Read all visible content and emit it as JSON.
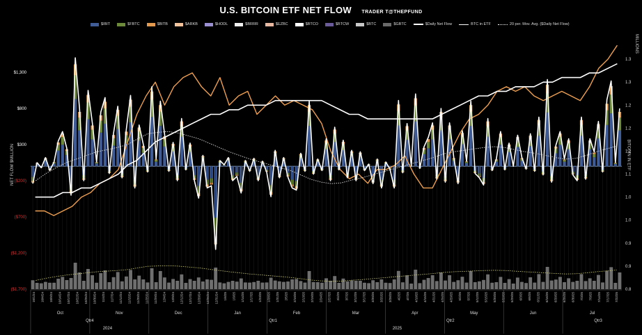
{
  "header": {
    "title": "U.S. BITCOIN ETF NET FLOW",
    "subtitle": "TRADER T@THEPFUND"
  },
  "legend": [
    {
      "label": "$IBIT",
      "kind": "bar",
      "color": "#3f5c96"
    },
    {
      "label": "$FBTC",
      "kind": "bar",
      "color": "#6c8a3a"
    },
    {
      "label": "$BITB",
      "kind": "bar",
      "color": "#e39a4e"
    },
    {
      "label": "$ARKB",
      "kind": "bar",
      "color": "#f2c29a"
    },
    {
      "label": "$HODL",
      "kind": "bar",
      "color": "#9a8fd0"
    },
    {
      "label": "$BRRR",
      "kind": "bar",
      "color": "#f0f0f0"
    },
    {
      "label": "$EZBC",
      "kind": "bar",
      "color": "#e8b8a0"
    },
    {
      "label": "$BTCO",
      "kind": "bar",
      "color": "#ffffff"
    },
    {
      "label": "$BTCW",
      "kind": "bar",
      "color": "#6a5a9a"
    },
    {
      "label": "$BTC",
      "kind": "bar",
      "color": "#c8c8c8"
    },
    {
      "label": "$GBTC",
      "kind": "bar",
      "color": "#6a6a6a"
    },
    {
      "label": "$Daily Net Flow",
      "kind": "line"
    },
    {
      "label": "BTC in ETF",
      "kind": "thinline"
    },
    {
      "label": "20 per. Mov. Avg. ($Daily Net Flow)",
      "kind": "dotted"
    }
  ],
  "colors": {
    "ibit": "#3f5c96",
    "fbtc": "#6c8a3a",
    "bitb": "#e39a4e",
    "arkb": "#f2c29a",
    "gbtc": "#6a6a6a",
    "flow_line": "#ffffff",
    "btc_line": "#f0a050",
    "negative_tick": "#e03030",
    "volume": "#8a8a8a"
  },
  "chart_data": {
    "type": "bar",
    "title": "U.S. BITCOIN ETF NET FLOW",
    "ylabel": "NET FLOW $MILLION",
    "y2label": "BITCOIN IN ETF",
    "y3label": "MILLIONS",
    "ylim": [
      -1700,
      1800
    ],
    "y2lim": [
      0.8,
      1.35
    ],
    "yticks": [
      "$1,300",
      "$800",
      "$300",
      "($200)",
      "($700)",
      "($1,200)",
      "($1,700)"
    ],
    "ytick_values": [
      1300,
      800,
      300,
      -200,
      -700,
      -1200,
      -1700
    ],
    "y2ticks": [
      "1.3",
      "1.3",
      "1.2",
      "1.2",
      "1.1",
      "1.1",
      "1.0",
      "1.0",
      "0.9",
      "0.9",
      "0.8"
    ],
    "y2tick_values": [
      1.3,
      1.25,
      1.2,
      1.15,
      1.1,
      1.05,
      1.0,
      0.95,
      0.9,
      0.85,
      0.8
    ],
    "months": [
      "Oct",
      "Nov",
      "Dec",
      "Jan",
      "Feb",
      "Mar",
      "Apr",
      "May",
      "Jun",
      "Jul"
    ],
    "quarters": [
      "Qtr4",
      "Qtr1",
      "Qtr2",
      "Qtr3"
    ],
    "years": [
      "2024",
      "2025"
    ],
    "date_labels": [
      "10/1/24",
      "10/4/24",
      "10/9/24",
      "10/14/24",
      "10/17/24",
      "10/22/24",
      "10/25/24",
      "10/30/24",
      "11/4/24",
      "11/7/24",
      "11/12/24",
      "11/15/24",
      "11/20/24",
      "11/25/24",
      "11/29/24",
      "12/4/24",
      "12/9/24",
      "12/12/24",
      "12/17/24",
      "12/20/24",
      "12/26/24",
      "12/31/24",
      "1/6/25",
      "1/9/25",
      "1/14/25",
      "1/17/25",
      "1/23/25",
      "1/28/25",
      "1/31/25",
      "2/5/25",
      "2/10/25",
      "2/13/25",
      "2/19/25",
      "2/24/25",
      "2/27/25",
      "3/4/25",
      "3/7/25",
      "3/12/25",
      "3/17/25",
      "3/20/25",
      "3/25/25",
      "3/28/25",
      "4/2/25",
      "4/7/25",
      "4/10/25",
      "4/15/25",
      "4/21/25",
      "4/24/25",
      "4/29/25",
      "5/2/25",
      "5/7/25",
      "5/12/25",
      "5/15/25",
      "5/20/25",
      "5/23/25",
      "5/29/25",
      "6/3/25",
      "6/6/25",
      "6/11/25",
      "6/16/25",
      "6/20/25",
      "6/25/25",
      "6/30/25",
      "7/3/25",
      "7/9/25",
      "7/14/25",
      "7/17/25",
      "7/22/25"
    ],
    "series": [
      {
        "name": "$Daily Net Flow",
        "type": "line",
        "values": [
          -240,
          50,
          -20,
          120,
          -60,
          60,
          350,
          480,
          250,
          -400,
          1500,
          800,
          -200,
          1050,
          600,
          60,
          750,
          950,
          -100,
          460,
          830,
          -160,
          510,
          980,
          -300,
          570,
          300,
          -80,
          1100,
          100,
          900,
          440,
          -70,
          330,
          -200,
          660,
          -50,
          320,
          -200,
          -440,
          150,
          -300,
          -270,
          -1150,
          80,
          20,
          120,
          -200,
          -140,
          -370,
          80,
          -70,
          110,
          -200,
          70,
          -80,
          -420,
          220,
          -160,
          120,
          -150,
          -300,
          -330,
          180,
          -70,
          900,
          -110,
          100,
          -60,
          380,
          -200,
          540,
          -50,
          360,
          -160,
          220,
          -200,
          200,
          -60,
          30,
          -240,
          100,
          -300,
          60,
          -40,
          -300,
          910,
          -90,
          590,
          0,
          1000,
          -30,
          270,
          400,
          600,
          -180,
          800,
          -220,
          600,
          120,
          -240,
          490,
          70,
          900,
          -100,
          -160,
          -260,
          660,
          -60,
          100,
          480,
          -50,
          320,
          0,
          430,
          120,
          -40,
          450,
          -70,
          680,
          -120,
          1200,
          -220,
          290,
          480,
          100,
          380,
          -120,
          -200,
          680,
          -180,
          380,
          200,
          620,
          -80,
          920,
          1180,
          50,
          800
        ]
      },
      {
        "name": "BTC in ETF",
        "type": "line",
        "values": [
          1.0,
          1.0,
          1.0,
          1.01,
          1.01,
          1.02,
          1.02,
          1.03,
          1.04,
          1.05,
          1.07,
          1.08,
          1.1,
          1.12,
          1.13,
          1.14,
          1.15,
          1.16,
          1.17,
          1.18,
          1.18,
          1.19,
          1.19,
          1.2,
          1.2,
          1.2,
          1.21,
          1.21,
          1.21,
          1.21,
          1.21,
          1.21,
          1.2,
          1.19,
          1.18,
          1.18,
          1.17,
          1.17,
          1.17,
          1.17,
          1.17,
          1.17,
          1.17,
          1.17,
          1.18,
          1.19,
          1.2,
          1.21,
          1.22,
          1.22,
          1.23,
          1.23,
          1.24,
          1.24,
          1.24,
          1.25,
          1.25,
          1.26,
          1.26,
          1.26,
          1.27,
          1.27,
          1.28,
          1.29
        ]
      },
      {
        "name": "BTC price",
        "type": "line",
        "values": [
          0.97,
          0.97,
          0.96,
          0.97,
          0.98,
          1.0,
          1.01,
          1.03,
          1.04,
          1.06,
          1.12,
          1.18,
          1.22,
          1.25,
          1.2,
          1.24,
          1.26,
          1.27,
          1.24,
          1.22,
          1.26,
          1.2,
          1.22,
          1.23,
          1.18,
          1.2,
          1.22,
          1.2,
          1.21,
          1.2,
          1.19,
          1.16,
          1.1,
          1.06,
          1.04,
          1.05,
          1.03,
          1.06,
          1.06,
          1.07,
          1.09,
          1.05,
          1.02,
          1.02,
          1.06,
          1.1,
          1.14,
          1.17,
          1.18,
          1.2,
          1.23,
          1.24,
          1.23,
          1.24,
          1.22,
          1.21,
          1.22,
          1.23,
          1.22,
          1.21,
          1.24,
          1.28,
          1.3,
          1.33
        ]
      },
      {
        "name": "20 per. Mov. Avg. ($Daily Net Flow)",
        "type": "line",
        "values": [
          -200,
          -100,
          -20,
          50,
          100,
          150,
          200,
          230,
          260,
          300,
          380,
          450,
          470,
          480,
          460,
          420,
          380,
          320,
          260,
          200,
          150,
          100,
          60,
          20,
          -20,
          -60,
          -120,
          -180,
          -220,
          -240,
          -230,
          -190,
          -160,
          -120,
          -80,
          -40,
          0,
          40,
          80,
          120,
          170,
          200,
          220,
          240,
          260,
          270,
          260,
          230,
          200,
          180,
          150,
          120,
          100,
          110,
          150,
          200,
          240,
          280
        ]
      }
    ]
  }
}
